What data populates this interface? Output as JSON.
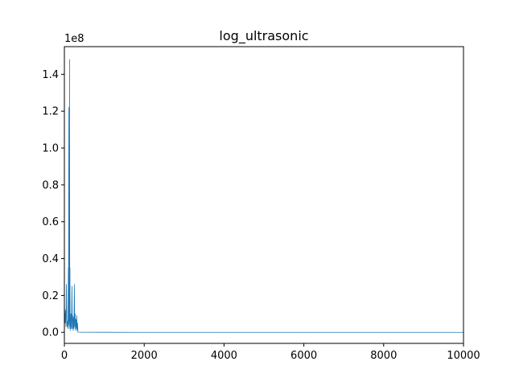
{
  "chart_data": {
    "type": "line",
    "title": "log_ultrasonic",
    "xlabel": "",
    "ylabel": "",
    "y_offset_label": "1e8",
    "xlim": [
      0,
      10000
    ],
    "ylim": [
      -6000000,
      155000000
    ],
    "x_ticks": [
      0,
      2000,
      4000,
      6000,
      8000,
      10000
    ],
    "x_tick_labels": [
      "0",
      "2000",
      "4000",
      "6000",
      "8000",
      "10000"
    ],
    "y_ticks": [
      0,
      20000000,
      40000000,
      60000000,
      80000000,
      100000000,
      120000000,
      140000000
    ],
    "y_tick_labels": [
      "0.0",
      "0.2",
      "0.4",
      "0.6",
      "0.8",
      "1.0",
      "1.2",
      "1.4"
    ],
    "grid": false,
    "line_color": "#1f77b4",
    "series": [
      {
        "x": [
          0,
          10,
          20,
          30,
          40,
          50,
          60,
          70,
          80,
          90,
          100,
          105,
          110,
          115,
          120,
          125,
          130,
          135,
          140,
          145,
          150,
          155,
          160,
          165,
          170,
          175,
          180,
          190,
          200,
          210,
          220,
          230,
          240,
          250,
          260,
          270,
          280,
          290,
          300,
          310,
          320,
          330,
          340,
          400,
          1000,
          2000,
          4000,
          6000,
          8000,
          10000
        ],
        "y": [
          15000000,
          10000000,
          5000000,
          12000000,
          3000000,
          26000000,
          8000000,
          3000000,
          6000000,
          2000000,
          35000000,
          4000000,
          122000000,
          6000000,
          47000000,
          2000000,
          148000000,
          5000000,
          35000000,
          3000000,
          10000000,
          1000000,
          8000000,
          3000000,
          10000000,
          2000000,
          6000000,
          25000000,
          2000000,
          9000000,
          1000000,
          8000000,
          2000000,
          26000000,
          3000000,
          10000000,
          1000000,
          7000000,
          2000000,
          9000000,
          1000000,
          5000000,
          100000,
          50000,
          20000,
          10000,
          5000,
          3000,
          2000,
          1000
        ]
      }
    ]
  }
}
